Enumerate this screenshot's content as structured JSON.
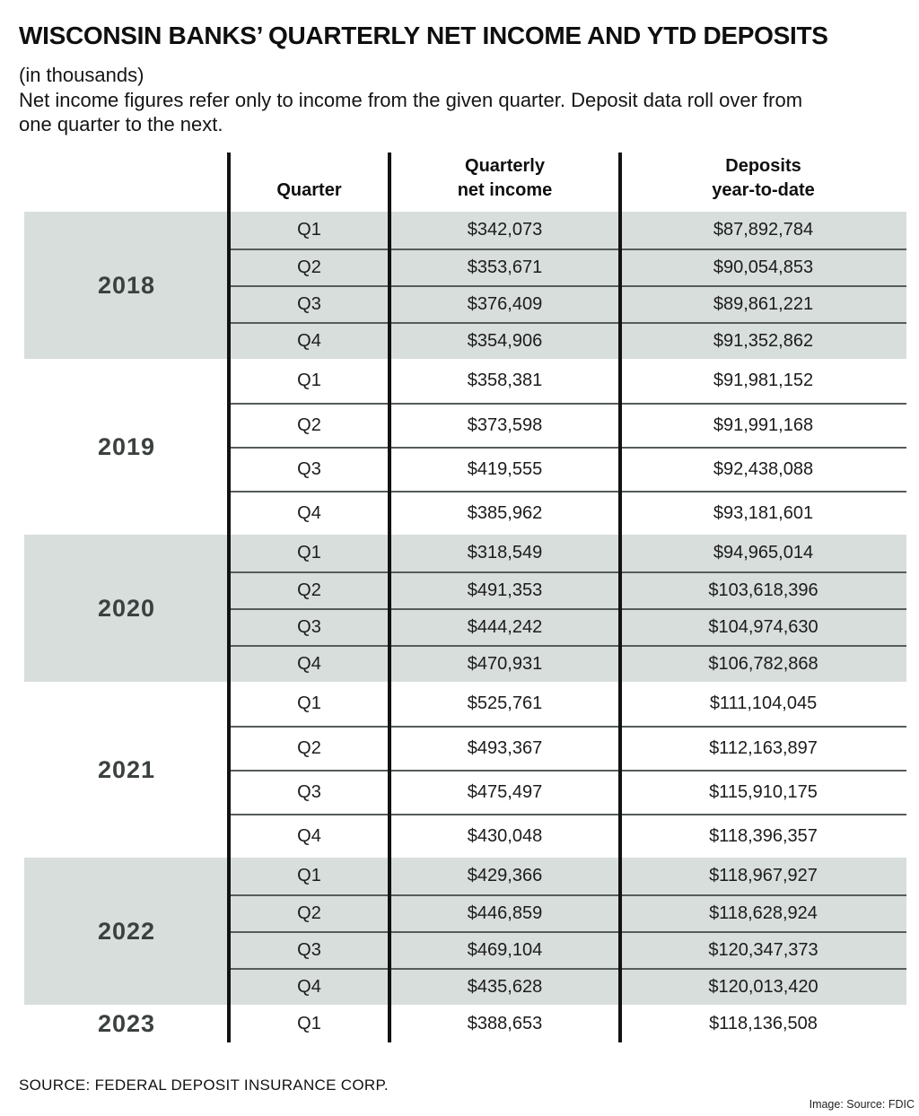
{
  "title": "WISCONSIN BANKS’ QUARTERLY NET INCOME AND YTD DEPOSITS",
  "subtitle": "(in thousands)",
  "note_lines": [
    "Net income figures refer only to income from the given quarter. Deposit data roll over from",
    "one quarter to the next."
  ],
  "table": {
    "headers": {
      "quarter": [
        "Quarter"
      ],
      "net_income": [
        "Quarterly",
        "net income"
      ],
      "deposits": [
        "Deposits",
        "year-to-date"
      ]
    },
    "years": [
      {
        "year": "2018",
        "shaded": true,
        "rows": [
          {
            "quarter": "Q1",
            "net_income": "$342,073",
            "deposits": "$87,892,784"
          },
          {
            "quarter": "Q2",
            "net_income": "$353,671",
            "deposits": "$90,054,853"
          },
          {
            "quarter": "Q3",
            "net_income": "$376,409",
            "deposits": "$89,861,221"
          },
          {
            "quarter": "Q4",
            "net_income": "$354,906",
            "deposits": "$91,352,862"
          }
        ]
      },
      {
        "year": "2019",
        "shaded": false,
        "rows": [
          {
            "quarter": "Q1",
            "net_income": "$358,381",
            "deposits": "$91,981,152"
          },
          {
            "quarter": "Q2",
            "net_income": "$373,598",
            "deposits": "$91,991,168"
          },
          {
            "quarter": "Q3",
            "net_income": "$419,555",
            "deposits": "$92,438,088"
          },
          {
            "quarter": "Q4",
            "net_income": "$385,962",
            "deposits": "$93,181,601"
          }
        ]
      },
      {
        "year": "2020",
        "shaded": true,
        "rows": [
          {
            "quarter": "Q1",
            "net_income": "$318,549",
            "deposits": "$94,965,014"
          },
          {
            "quarter": "Q2",
            "net_income": "$491,353",
            "deposits": "$103,618,396"
          },
          {
            "quarter": "Q3",
            "net_income": "$444,242",
            "deposits": "$104,974,630"
          },
          {
            "quarter": "Q4",
            "net_income": "$470,931",
            "deposits": "$106,782,868"
          }
        ]
      },
      {
        "year": "2021",
        "shaded": false,
        "rows": [
          {
            "quarter": "Q1",
            "net_income": "$525,761",
            "deposits": "$111,104,045"
          },
          {
            "quarter": "Q2",
            "net_income": "$493,367",
            "deposits": "$112,163,897"
          },
          {
            "quarter": "Q3",
            "net_income": "$475,497",
            "deposits": "$115,910,175"
          },
          {
            "quarter": "Q4",
            "net_income": "$430,048",
            "deposits": "$118,396,357"
          }
        ]
      },
      {
        "year": "2022",
        "shaded": true,
        "rows": [
          {
            "quarter": "Q1",
            "net_income": "$429,366",
            "deposits": "$118,967,927"
          },
          {
            "quarter": "Q2",
            "net_income": "$446,859",
            "deposits": "$118,628,924"
          },
          {
            "quarter": "Q3",
            "net_income": "$469,104",
            "deposits": "$120,347,373"
          },
          {
            "quarter": "Q4",
            "net_income": "$435,628",
            "deposits": "$120,013,420"
          }
        ]
      },
      {
        "year": "2023",
        "shaded": false,
        "rows": [
          {
            "quarter": "Q1",
            "net_income": "$388,653",
            "deposits": "$118,136,508"
          }
        ]
      }
    ]
  },
  "footer": {
    "source": "SOURCE: FEDERAL DEPOSIT INSURANCE CORP.",
    "credit": "Image: Source: FDIC"
  },
  "colors": {
    "band_bg": "#d8dedc",
    "year_text": "#3b4140",
    "rule_black": "#121212",
    "row_separator": "#565b5c",
    "text": "#1c1c1c"
  },
  "chart_data": {
    "type": "table",
    "title": "WISCONSIN BANKS' QUARTERLY NET INCOME AND YTD DEPOSITS",
    "units": "in thousands",
    "note": "Net income figures refer only to income from the given quarter. Deposit data roll over from one quarter to the next.",
    "source": "Federal Deposit Insurance Corp.",
    "columns": [
      "Year",
      "Quarter",
      "Quarterly net income",
      "Deposits year-to-date"
    ],
    "rows": [
      [
        "2018",
        "Q1",
        342073,
        87892784
      ],
      [
        "2018",
        "Q2",
        353671,
        90054853
      ],
      [
        "2018",
        "Q3",
        376409,
        89861221
      ],
      [
        "2018",
        "Q4",
        354906,
        91352862
      ],
      [
        "2019",
        "Q1",
        358381,
        91981152
      ],
      [
        "2019",
        "Q2",
        373598,
        91991168
      ],
      [
        "2019",
        "Q3",
        419555,
        92438088
      ],
      [
        "2019",
        "Q4",
        385962,
        93181601
      ],
      [
        "2020",
        "Q1",
        318549,
        94965014
      ],
      [
        "2020",
        "Q2",
        491353,
        103618396
      ],
      [
        "2020",
        "Q3",
        444242,
        104974630
      ],
      [
        "2020",
        "Q4",
        470931,
        106782868
      ],
      [
        "2021",
        "Q1",
        525761,
        111104045
      ],
      [
        "2021",
        "Q2",
        493367,
        112163897
      ],
      [
        "2021",
        "Q3",
        475497,
        115910175
      ],
      [
        "2021",
        "Q4",
        430048,
        118396357
      ],
      [
        "2022",
        "Q1",
        429366,
        118967927
      ],
      [
        "2022",
        "Q2",
        446859,
        118628924
      ],
      [
        "2022",
        "Q3",
        469104,
        120347373
      ],
      [
        "2022",
        "Q4",
        435628,
        120013420
      ],
      [
        "2023",
        "Q1",
        388653,
        118136508
      ]
    ]
  }
}
